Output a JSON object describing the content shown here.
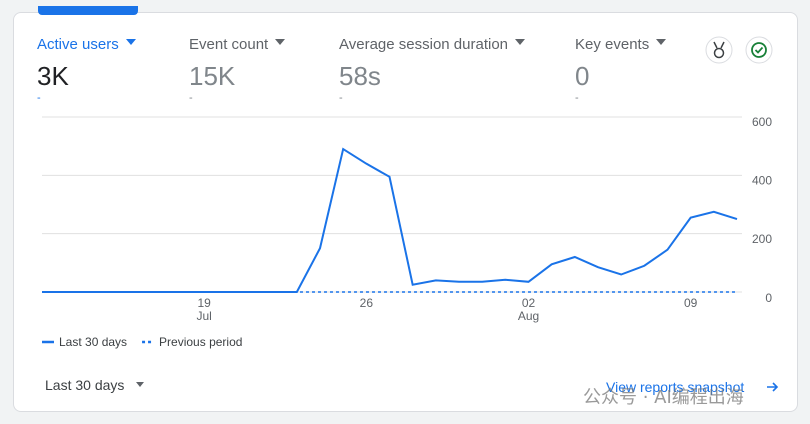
{
  "metrics": [
    {
      "label": "Active users",
      "value": "3K",
      "sub": "-"
    },
    {
      "label": "Event count",
      "value": "15K",
      "sub": "-"
    },
    {
      "label": "Average session duration",
      "value": "58s",
      "sub": "-"
    },
    {
      "label": "Key events",
      "value": "0",
      "sub": "-"
    }
  ],
  "chart_data": {
    "type": "line",
    "categories": [
      null,
      null,
      null,
      null,
      null,
      null,
      null,
      "19",
      null,
      null,
      null,
      null,
      null,
      null,
      "26",
      null,
      null,
      null,
      null,
      null,
      null,
      "02",
      null,
      null,
      null,
      null,
      null,
      null,
      "09",
      null,
      null
    ],
    "category_sublabels": [
      null,
      null,
      null,
      null,
      null,
      null,
      null,
      "Jul",
      null,
      null,
      null,
      null,
      null,
      null,
      null,
      null,
      null,
      null,
      null,
      null,
      null,
      "Aug",
      null,
      null,
      null,
      null,
      null,
      null,
      null,
      null,
      null
    ],
    "series": [
      {
        "name": "Last 30 days",
        "color": "#1a73e8",
        "dashed": false,
        "values": [
          0,
          0,
          0,
          0,
          0,
          0,
          0,
          0,
          0,
          0,
          0,
          0,
          150,
          490,
          440,
          395,
          25,
          40,
          35,
          35,
          42,
          35,
          95,
          120,
          85,
          60,
          90,
          145,
          255,
          275,
          250
        ]
      },
      {
        "name": "Previous period",
        "color": "#1a73e8",
        "dashed": true,
        "values": [
          0,
          0,
          0,
          0,
          0,
          0,
          0,
          0,
          0,
          0,
          0,
          0,
          0,
          0,
          0,
          0,
          0,
          0,
          0,
          0,
          0,
          0,
          0,
          0,
          0,
          0,
          0,
          0,
          0,
          0,
          0
        ]
      }
    ],
    "ylim": [
      0,
      600
    ],
    "yticks": [
      0,
      200,
      400,
      600
    ],
    "grid": true
  },
  "footer": {
    "range": "Last 30 days",
    "link": "View reports snapshot"
  },
  "watermark": "公众号 · AI编程出海"
}
